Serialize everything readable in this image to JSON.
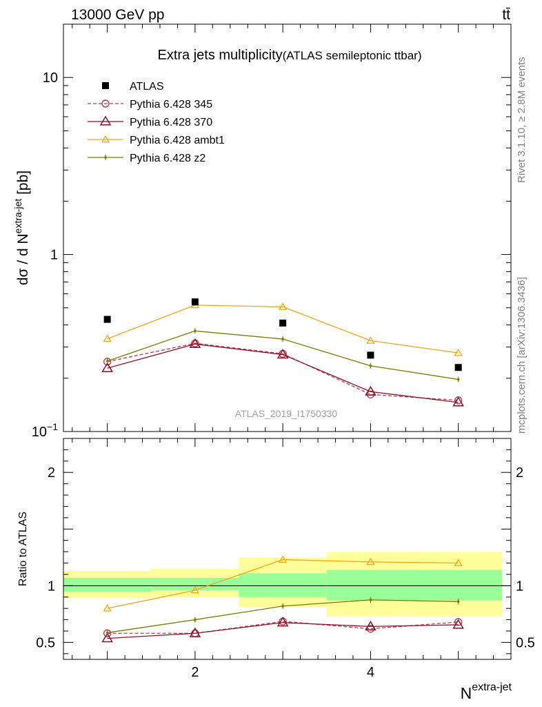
{
  "header": {
    "left": "13000 GeV pp",
    "right": "tt̄"
  },
  "side": {
    "rivet": "Rivet 3.1.10, ≥ 2.8M events",
    "mcplots": "mcplots.cern.ch [arXiv:1306.3436]"
  },
  "chart_data": {
    "type": "scatter",
    "title": "Extra jets multiplicity",
    "subtitle": "(ATLAS semileptonic ttbar)",
    "analysis_tag": "ATLAS_2019_I1750330",
    "xlabel_base": "N",
    "xlabel_sup": "extra-jet",
    "main_ylabel_pre": "dσ / d N",
    "main_ylabel_sup": "extra-jet",
    "main_ylabel_post": " [pb]",
    "ratio_ylabel": "Ratio to ATLAS",
    "x_range": [
      0.5,
      5.6
    ],
    "y_range_main": [
      0.1,
      20
    ],
    "y_scale_main": "log",
    "y_range_ratio": [
      0.35,
      2.3
    ],
    "x_ticks": [
      "2",
      "4"
    ],
    "main_y_ticks": [
      {
        "value": 10,
        "label": "10",
        "sup": ""
      },
      {
        "value": 1,
        "label": "1",
        "sup": ""
      },
      {
        "value": 0.1,
        "label": "10",
        "sup": "−1"
      }
    ],
    "ratio_y_ticks": [
      "0.5",
      "1",
      "2"
    ],
    "x": [
      1,
      2,
      3,
      4,
      5
    ],
    "data": {
      "name": "ATLAS",
      "values": [
        0.43,
        0.54,
        0.41,
        0.27,
        0.23
      ],
      "band_stat": [
        [
          0.945,
          1.07
        ],
        [
          0.96,
          1.07
        ],
        [
          0.9,
          1.11
        ],
        [
          0.87,
          1.14
        ],
        [
          0.87,
          1.14
        ]
      ],
      "band_total": [
        [
          0.89,
          1.13
        ],
        [
          0.9,
          1.15
        ],
        [
          0.81,
          1.25
        ],
        [
          0.73,
          1.3
        ],
        [
          0.73,
          1.3
        ]
      ]
    },
    "series": [
      {
        "name": "Pythia 6.428 345",
        "color": "#b83a4e",
        "dashed": true,
        "marker": "circle",
        "values": [
          0.248,
          0.315,
          0.275,
          0.162,
          0.15
        ],
        "ratio": [
          0.58,
          0.58,
          0.685,
          0.62,
          0.68
        ]
      },
      {
        "name": "Pythia 6.428 370",
        "color": "#8b0f28",
        "dashed": false,
        "marker": "triangle",
        "values": [
          0.228,
          0.312,
          0.272,
          0.168,
          0.146
        ],
        "ratio": [
          0.535,
          0.58,
          0.675,
          0.64,
          0.655
        ]
      },
      {
        "name": "Pythia 6.428 ambt1",
        "color": "#f2a418",
        "dashed": false,
        "marker": "triangle-small",
        "values": [
          0.334,
          0.518,
          0.506,
          0.326,
          0.278
        ],
        "ratio": [
          0.8,
          0.96,
          1.23,
          1.21,
          1.2
        ]
      },
      {
        "name": "Pythia 6.428 z2",
        "color": "#7a7a00",
        "dashed": false,
        "marker": "dot",
        "values": [
          0.25,
          0.37,
          0.333,
          0.235,
          0.197
        ],
        "ratio": [
          0.585,
          0.7,
          0.82,
          0.875,
          0.86
        ]
      }
    ]
  }
}
